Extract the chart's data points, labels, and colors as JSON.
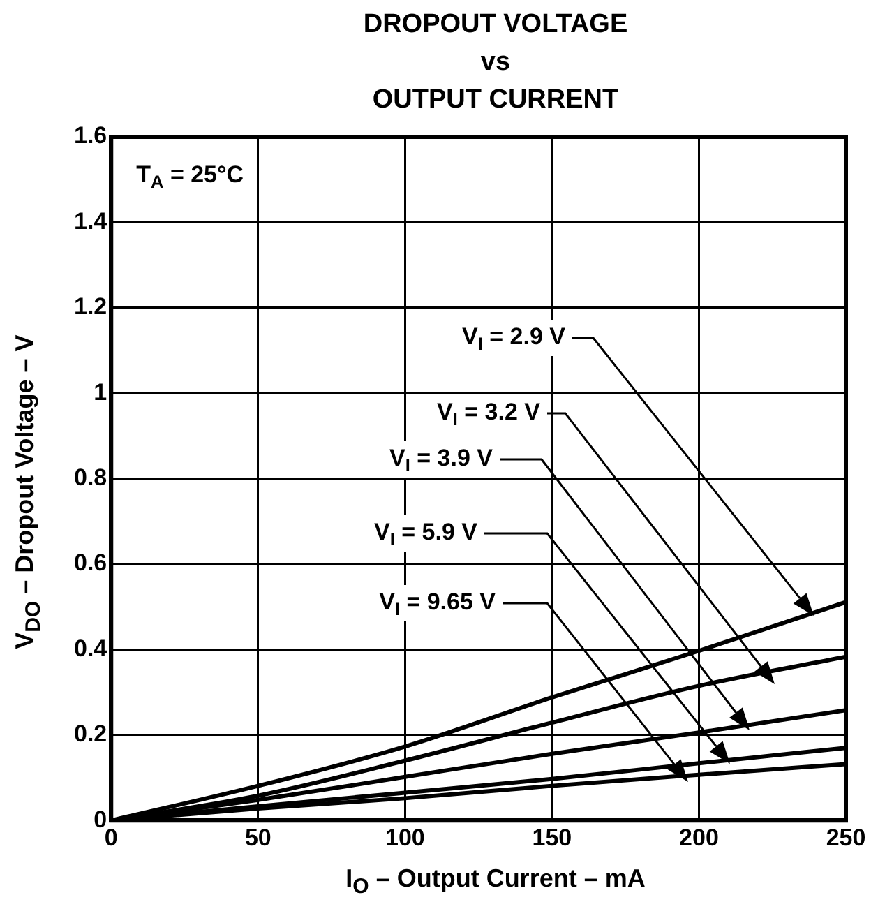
{
  "chart_data": {
    "type": "line",
    "title": "DROPOUT VOLTAGE\nvs\nOUTPUT CURRENT",
    "xlabel": "I$_{O}$ – Output Current – mA",
    "ylabel": "V$_{DO}$ – Dropout Voltage – V",
    "x": [
      0,
      50,
      100,
      150,
      200,
      250
    ],
    "series": [
      {
        "name": "V$_{I}$ = 2.9 V",
        "color": "#000000",
        "values": [
          0,
          0.081,
          0.173,
          0.288,
          0.397,
          0.511
        ]
      },
      {
        "name": "V$_{I}$ = 3.2 V",
        "color": "#000000",
        "values": [
          0,
          0.058,
          0.14,
          0.229,
          0.315,
          0.383
        ]
      },
      {
        "name": "V$_{I}$ = 3.9 V",
        "color": "#000000",
        "values": [
          0,
          0.048,
          0.102,
          0.156,
          0.206,
          0.258
        ]
      },
      {
        "name": "V$_{I}$ = 5.9 V",
        "color": "#000000",
        "values": [
          0,
          0.033,
          0.065,
          0.097,
          0.134,
          0.17
        ]
      },
      {
        "name": "V$_{I}$ = 9.65 V",
        "color": "#000000",
        "values": [
          0,
          0.028,
          0.052,
          0.081,
          0.107,
          0.132
        ]
      }
    ],
    "xlim": [
      0,
      250
    ],
    "xticks": [
      0,
      50,
      100,
      150,
      200,
      250
    ],
    "ylim": [
      0,
      1.6
    ],
    "yticks": [
      0,
      0.2,
      0.4,
      0.6,
      0.8,
      1,
      1.2,
      1.4,
      1.6
    ],
    "grid": true,
    "legend": false,
    "marker": "none",
    "line_style": "solid",
    "annotations": [
      "T$_{A}$ = 25°C"
    ]
  }
}
